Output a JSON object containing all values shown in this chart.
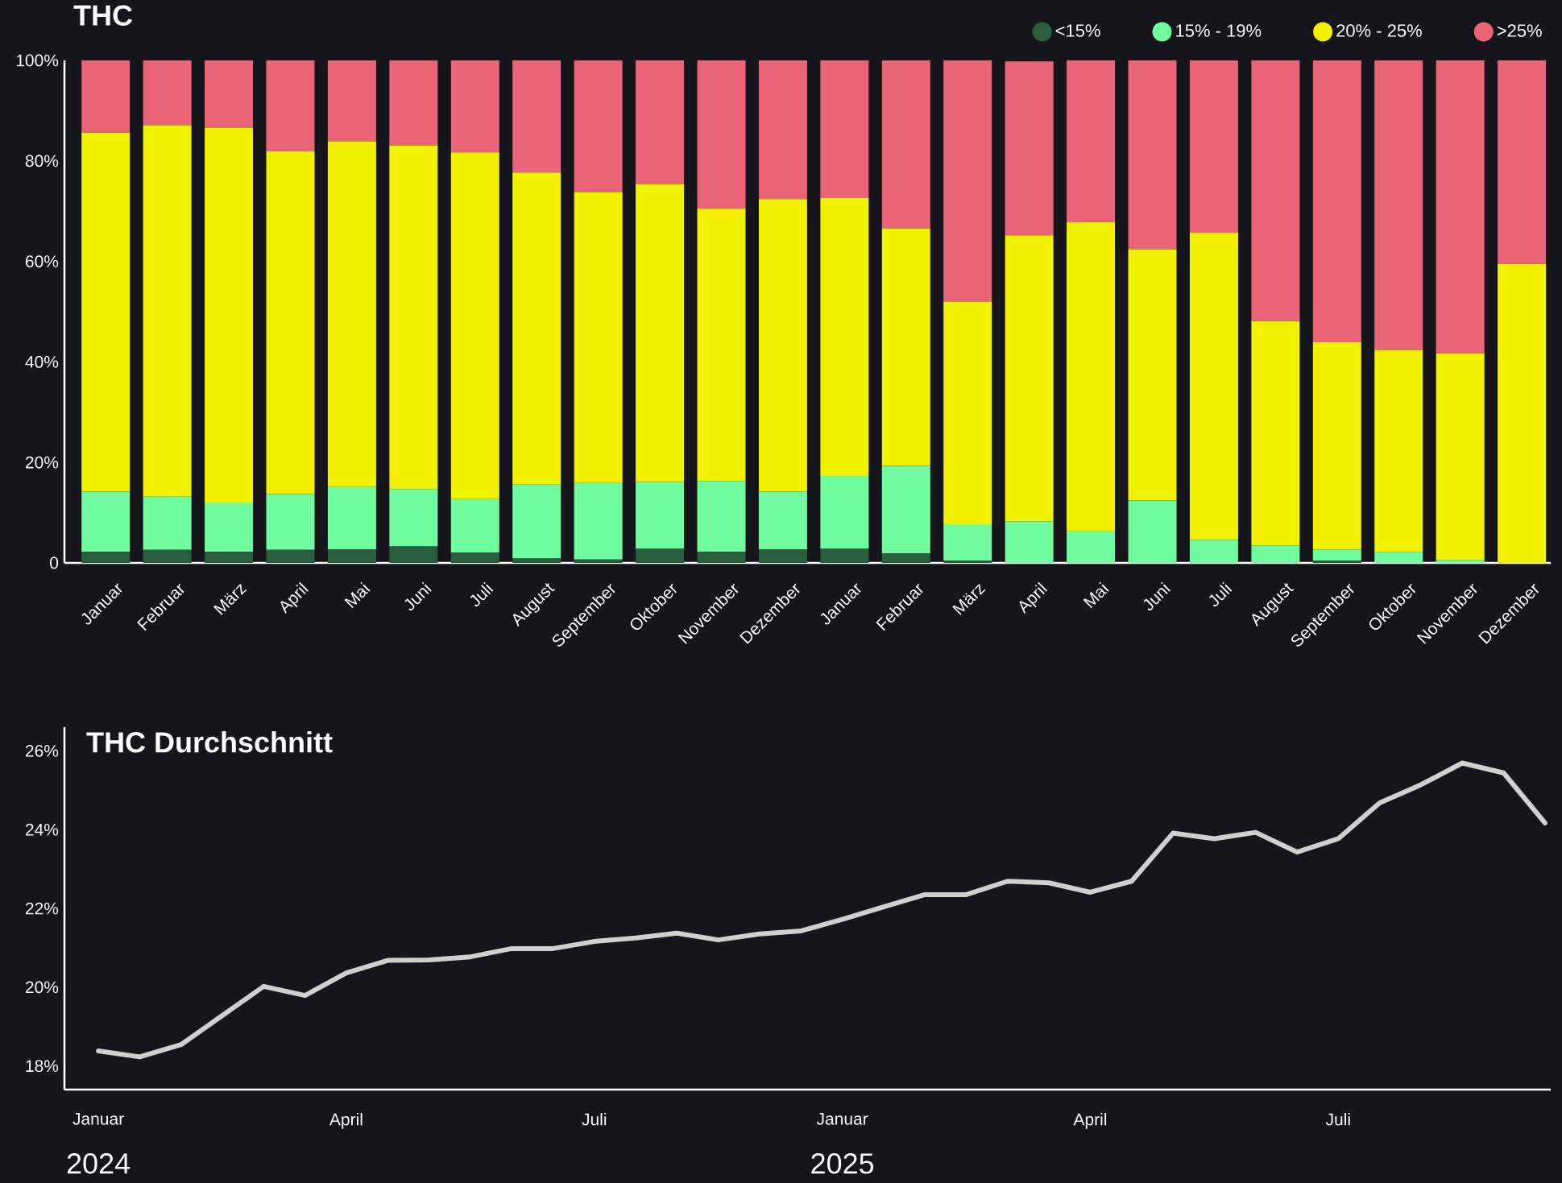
{
  "chart_data": [
    {
      "type": "bar",
      "title": "THC",
      "stacked": true,
      "legend": "top right",
      "categories": [
        "Januar",
        "Februar",
        "März",
        "April",
        "Mai",
        "Juni",
        "Juli",
        "August",
        "September",
        "Oktober",
        "November",
        "Dezember",
        "Januar",
        "Februar",
        "März",
        "April",
        "Mai",
        "Juni",
        "Juli",
        "August",
        "September",
        "Oktober",
        "November",
        "Dezember"
      ],
      "series": [
        {
          "name": "<15%",
          "color": "#285e3b",
          "values": [
            2.2,
            2.6,
            2.2,
            2.6,
            2.7,
            3.3,
            2.1,
            0.9,
            0.7,
            2.8,
            2.2,
            2.7,
            2.8,
            1.9,
            0.5,
            null,
            0,
            0,
            0,
            0,
            0.5,
            0,
            0,
            0
          ]
        },
        {
          "name": "15% - 19%",
          "color": "#72fca0",
          "values": [
            12.0,
            10.6,
            9.8,
            11.1,
            12.4,
            11.4,
            10.6,
            14.7,
            15.2,
            13.3,
            14.1,
            11.5,
            14.5,
            17.4,
            7.2,
            8.3,
            6.3,
            12.4,
            4.6,
            3.5,
            2.2,
            2.2,
            0.6,
            0
          ]
        },
        {
          "name": "20% - 25%",
          "color": "#f2f200",
          "values": [
            71.4,
            73.9,
            74.6,
            68.2,
            68.8,
            68.4,
            69.0,
            62.1,
            57.9,
            59.3,
            54.2,
            58.2,
            55.3,
            47.3,
            44.3,
            56.9,
            61.5,
            50.0,
            61.1,
            44.6,
            41.2,
            40.2,
            41.1,
            59.5
          ]
        },
        {
          "name": ">25%",
          "color": "#ea6478",
          "values": [
            14.4,
            12.9,
            13.4,
            18.1,
            16.1,
            16.9,
            18.3,
            22.3,
            26.2,
            24.6,
            29.5,
            27.6,
            27.4,
            33.4,
            48.0,
            34.6,
            32.2,
            37.6,
            34.3,
            51.9,
            56.1,
            57.6,
            58.3,
            40.5
          ]
        }
      ],
      "ylim": [
        0,
        100
      ],
      "yticks": [
        0,
        {
          "value": 20,
          "label": "20%"
        },
        {
          "value": 40,
          "label": "40%"
        },
        {
          "value": 60,
          "label": "60%"
        },
        {
          "value": 80,
          "label": "80%"
        },
        {
          "value": 100,
          "label": "100%"
        }
      ]
    },
    {
      "type": "line",
      "title": "THC Durchschnitt",
      "categories": [
        "Januar",
        null,
        null,
        null,
        null,
        null,
        "April",
        null,
        null,
        null,
        null,
        null,
        "Juli",
        null,
        null,
        null,
        null,
        null,
        "Januar",
        null,
        null,
        null,
        null,
        null,
        "April",
        null,
        null,
        null,
        null,
        null,
        "Juli",
        null,
        null,
        null,
        null,
        null
      ],
      "values": [
        18.38,
        18.23,
        18.54,
        19.28,
        20.02,
        19.79,
        20.36,
        20.68,
        20.69,
        20.77,
        20.98,
        20.98,
        21.16,
        21.25,
        21.37,
        21.2,
        21.35,
        21.43,
        21.72,
        22.04,
        22.35,
        22.35,
        22.69,
        22.65,
        22.41,
        22.69,
        23.91,
        23.77,
        23.93,
        23.43,
        23.77,
        24.68,
        25.14,
        25.69,
        25.44,
        24.17
      ],
      "color": "#d0d0d0",
      "ylim": [
        17.4,
        26.6
      ],
      "yticks": [
        {
          "value": 18,
          "label": "18%"
        },
        {
          "value": 20,
          "label": "20%"
        },
        {
          "value": 22,
          "label": "22%"
        },
        {
          "value": 24,
          "label": "24%"
        },
        {
          "value": 26,
          "label": "26%"
        }
      ],
      "annotations": [
        "2024",
        "2025"
      ]
    }
  ]
}
